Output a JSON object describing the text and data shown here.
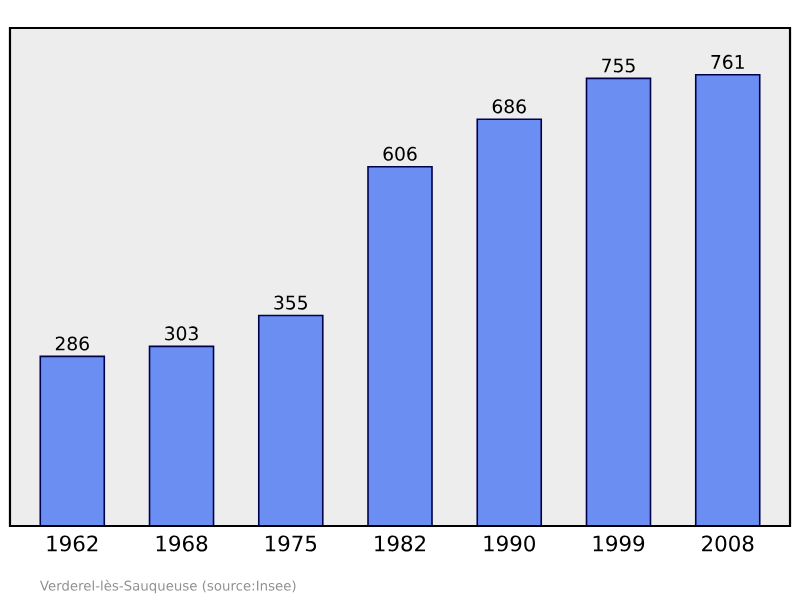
{
  "chart_data": {
    "type": "bar",
    "categories": [
      "1962",
      "1968",
      "1975",
      "1982",
      "1990",
      "1999",
      "2008"
    ],
    "values": [
      286,
      303,
      355,
      606,
      686,
      755,
      761
    ],
    "color": "#6b8ef2",
    "ylim": [
      0,
      840
    ],
    "data_labels": true,
    "annotations": [
      "Verderel-lès-Sauqueuse    (source:Insee)"
    ]
  }
}
